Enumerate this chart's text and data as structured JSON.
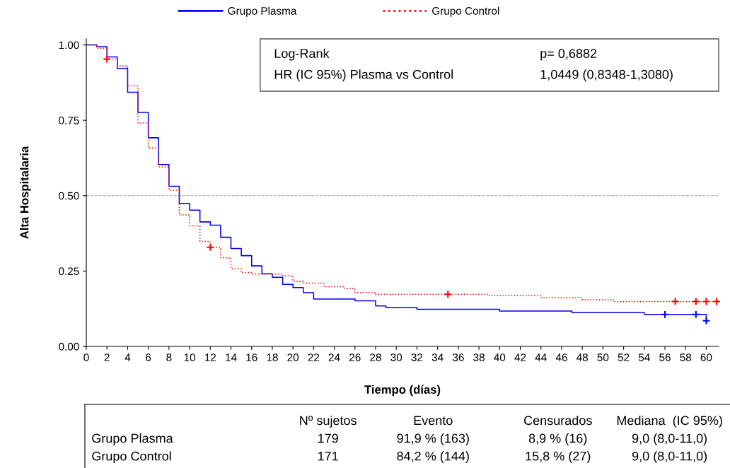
{
  "chart_data": {
    "type": "step",
    "xlabel": "Tiempo (días)",
    "ylabel": "Alta Hospitalaria",
    "xlim": [
      0,
      61.2
    ],
    "xticks": [
      0,
      2,
      4,
      6,
      8,
      10,
      12,
      14,
      16,
      18,
      20,
      22,
      24,
      26,
      28,
      30,
      32,
      34,
      36,
      38,
      40,
      42,
      44,
      46,
      48,
      50,
      52,
      54,
      56,
      58,
      60
    ],
    "ylim": [
      0,
      1.02
    ],
    "yticks": [
      {
        "value": 0,
        "label": "0.00"
      },
      {
        "value": 0.25,
        "label": "0.25"
      },
      {
        "value": 0.5,
        "label": "0.50"
      },
      {
        "value": 0.75,
        "label": "0.75"
      },
      {
        "value": 1,
        "label": "1.00"
      }
    ],
    "grid": false,
    "legend": "top",
    "ref_lines": [
      {
        "axis": "y",
        "value": 0.5,
        "color": "#a0a0a0",
        "line_style": "dashed"
      }
    ],
    "series": [
      {
        "name": "Grupo Plasma",
        "color": "#0000ff",
        "line_style": "solid",
        "x": [
          0,
          1,
          2,
          3,
          4,
          5,
          6,
          7,
          8,
          9,
          10,
          11,
          12,
          13,
          14,
          15,
          16,
          17,
          18,
          19,
          20,
          21,
          22,
          26,
          28,
          29,
          32,
          40,
          47,
          54,
          60
        ],
        "values": [
          1.0,
          0.994,
          0.96,
          0.922,
          0.843,
          0.776,
          0.692,
          0.603,
          0.531,
          0.474,
          0.452,
          0.413,
          0.402,
          0.362,
          0.325,
          0.301,
          0.267,
          0.241,
          0.229,
          0.206,
          0.195,
          0.178,
          0.157,
          0.151,
          0.134,
          0.129,
          0.123,
          0.117,
          0.112,
          0.106,
          0.085
        ]
      },
      {
        "name": "Grupo Control",
        "color": "#ff0000",
        "line_style": "dotted",
        "x": [
          0,
          1,
          2,
          3,
          4,
          5,
          6,
          7,
          8,
          9,
          10,
          11,
          12,
          13,
          14,
          15,
          16,
          19,
          20,
          21,
          23,
          25,
          26,
          28,
          39,
          44,
          48,
          51,
          61.1
        ],
        "values": [
          1.0,
          0.989,
          0.953,
          0.93,
          0.864,
          0.741,
          0.658,
          0.595,
          0.518,
          0.436,
          0.4,
          0.348,
          0.329,
          0.294,
          0.258,
          0.245,
          0.24,
          0.234,
          0.216,
          0.21,
          0.198,
          0.192,
          0.179,
          0.173,
          0.168,
          0.161,
          0.155,
          0.149,
          0.149
        ]
      },
      {
        "type": "scatter",
        "marker": "cross",
        "color": "#0000ff",
        "x": [
          56,
          59,
          60
        ],
        "values": [
          0.106,
          0.106,
          0.085
        ]
      },
      {
        "type": "scatter",
        "marker": "cross",
        "color": "#ff0000",
        "x": [
          2,
          12,
          35,
          57,
          59,
          60,
          61
        ],
        "values": [
          0.953,
          0.329,
          0.173,
          0.149,
          0.149,
          0.149,
          0.149
        ]
      }
    ],
    "annotations": [
      "Log-Rank",
      "p= 0,6882",
      "HR (IC 95%) Plasma vs Control",
      "1,0449 (0,8348-1,3080)",
      "Nº sujetos",
      "Evento",
      "Censurados",
      "Mediana  (IC 95%)",
      "Grupo Plasma",
      "179",
      "91,9 % (163)",
      "8,9 % (16)",
      "9,0 (8,0-11,0)",
      "Grupo Control",
      "171",
      "84,2 % (144)",
      "15,8 % (27)",
      "9,0 (8,0-11,0)"
    ]
  }
}
